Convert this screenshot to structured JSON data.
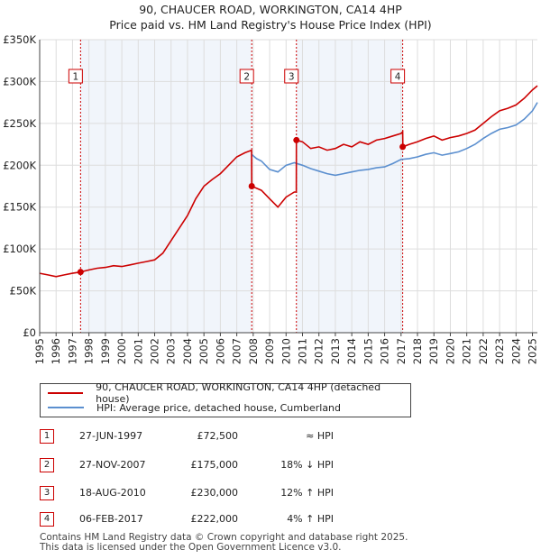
{
  "chart_data": {
    "type": "line",
    "title": "90, CHAUCER ROAD, WORKINGTON, CA14 4HP",
    "subtitle": "Price paid vs. HM Land Registry's House Price Index (HPI)",
    "xlabel": "",
    "ylabel": "",
    "xlim": [
      1995,
      2025.3
    ],
    "ylim": [
      0,
      350000
    ],
    "x_ticks": [
      "1995",
      "1996",
      "1997",
      "1998",
      "1999",
      "2000",
      "2001",
      "2002",
      "2003",
      "2004",
      "2005",
      "2006",
      "2007",
      "2008",
      "2009",
      "2010",
      "2011",
      "2012",
      "2013",
      "2014",
      "2015",
      "2016",
      "2017",
      "2018",
      "2019",
      "2020",
      "2021",
      "2022",
      "2023",
      "2024",
      "2025"
    ],
    "y_ticks": [
      {
        "value": 0,
        "label": "£0"
      },
      {
        "value": 50000,
        "label": "£50K"
      },
      {
        "value": 100000,
        "label": "£100K"
      },
      {
        "value": 150000,
        "label": "£150K"
      },
      {
        "value": 200000,
        "label": "£200K"
      },
      {
        "value": 250000,
        "label": "£250K"
      },
      {
        "value": 300000,
        "label": "£300K"
      },
      {
        "value": 350000,
        "label": "£350K"
      }
    ],
    "series": [
      {
        "name": "90, CHAUCER ROAD, WORKINGTON, CA14 4HP (detached house)",
        "color": "#cc0000",
        "x": [
          1995.0,
          1995.5,
          1996.0,
          1996.5,
          1997.0,
          1997.49,
          1998.0,
          1998.5,
          1999.0,
          1999.5,
          2000.0,
          2000.5,
          2001.0,
          2001.5,
          2002.0,
          2002.5,
          2003.0,
          2003.5,
          2004.0,
          2004.5,
          2005.0,
          2005.5,
          2006.0,
          2006.5,
          2007.0,
          2007.5,
          2007.9,
          2007.91,
          2008.5,
          2009.0,
          2009.5,
          2010.0,
          2010.5,
          2010.62,
          2010.63,
          2011.0,
          2011.5,
          2012.0,
          2012.5,
          2013.0,
          2013.5,
          2014.0,
          2014.5,
          2015.0,
          2015.5,
          2016.0,
          2016.5,
          2017.0,
          2017.1,
          2017.11,
          2017.5,
          2018.0,
          2018.5,
          2019.0,
          2019.5,
          2020.0,
          2020.5,
          2021.0,
          2021.5,
          2022.0,
          2022.5,
          2023.0,
          2023.5,
          2024.0,
          2024.5,
          2025.0,
          2025.3
        ],
        "values": [
          71000,
          69000,
          67000,
          69000,
          71000,
          72500,
          75000,
          77000,
          78000,
          80000,
          79000,
          81000,
          83000,
          85000,
          87000,
          95000,
          110000,
          125000,
          140000,
          160000,
          175000,
          183000,
          190000,
          200000,
          210000,
          215000,
          218000,
          175000,
          170000,
          160000,
          150000,
          162000,
          168000,
          168000,
          230000,
          228000,
          220000,
          222000,
          218000,
          220000,
          225000,
          222000,
          228000,
          225000,
          230000,
          232000,
          235000,
          238000,
          240000,
          222000,
          225000,
          228000,
          232000,
          235000,
          230000,
          233000,
          235000,
          238000,
          242000,
          250000,
          258000,
          265000,
          268000,
          272000,
          280000,
          290000,
          295000
        ]
      },
      {
        "name": "HPI: Average price, detached house, Cumberland",
        "color": "#5b8fcf",
        "x": [
          2007.9,
          2008.2,
          2008.5,
          2009.0,
          2009.5,
          2010.0,
          2010.5,
          2011.0,
          2011.5,
          2012.0,
          2012.5,
          2013.0,
          2013.5,
          2014.0,
          2014.5,
          2015.0,
          2015.5,
          2016.0,
          2016.5,
          2017.0,
          2017.5,
          2018.0,
          2018.5,
          2019.0,
          2019.5,
          2020.0,
          2020.5,
          2021.0,
          2021.5,
          2022.0,
          2022.5,
          2023.0,
          2023.5,
          2024.0,
          2024.5,
          2025.0,
          2025.3
        ],
        "values": [
          213000,
          208000,
          205000,
          195000,
          192000,
          200000,
          203000,
          200000,
          196000,
          193000,
          190000,
          188000,
          190000,
          192000,
          194000,
          195000,
          197000,
          198000,
          202000,
          207000,
          208000,
          210000,
          213000,
          215000,
          212000,
          214000,
          216000,
          220000,
          225000,
          232000,
          238000,
          243000,
          245000,
          248000,
          255000,
          265000,
          275000
        ]
      }
    ],
    "transactions": [
      {
        "id": "1",
        "x": 1997.49,
        "price": 72500
      },
      {
        "id": "2",
        "x": 2007.91,
        "price": 175000
      },
      {
        "id": "3",
        "x": 2010.63,
        "price": 230000
      },
      {
        "id": "4",
        "x": 2017.1,
        "price": 222000
      }
    ]
  },
  "legend": {
    "property": "90, CHAUCER ROAD, WORKINGTON, CA14 4HP (detached house)",
    "hpi": "HPI: Average price, detached house, Cumberland"
  },
  "transactions_table": [
    {
      "id": "1",
      "date": "27-JUN-1997",
      "price": "£72,500",
      "hpi": "≈ HPI"
    },
    {
      "id": "2",
      "date": "27-NOV-2007",
      "price": "£175,000",
      "hpi": "18% ↓ HPI"
    },
    {
      "id": "3",
      "date": "18-AUG-2010",
      "price": "£230,000",
      "hpi": "12% ↑ HPI"
    },
    {
      "id": "4",
      "date": "06-FEB-2017",
      "price": "£222,000",
      "hpi": "4% ↑ HPI"
    }
  ],
  "footer": {
    "line1": "Contains HM Land Registry data © Crown copyright and database right 2025.",
    "line2": "This data is licensed under the Open Government Licence v3.0."
  },
  "colors": {
    "property": "#cc0000",
    "hpi": "#5b8fcf",
    "grid": "#dddddd",
    "highlight": "#e8eef8"
  }
}
